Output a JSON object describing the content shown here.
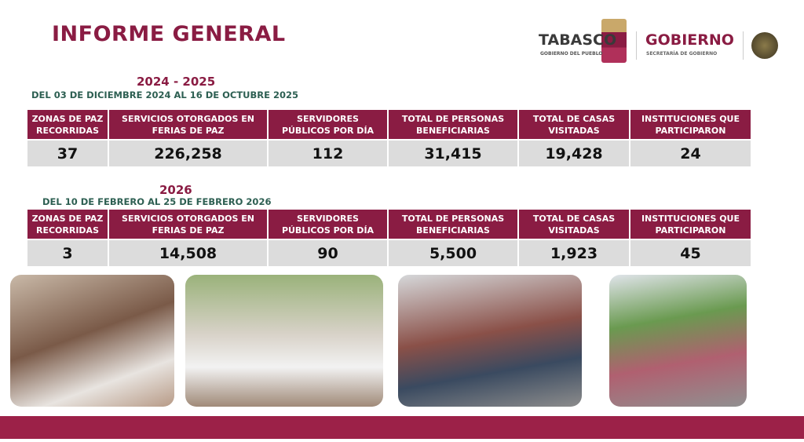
{
  "title": "INFORME GENERAL",
  "logos": {
    "tabasco": "TABASCO",
    "tabasco_sub": "GOBIERNO DEL PUEBLO",
    "gobierno": "GOBIERNO",
    "gobierno_sub": "SECRETARÍA DE GOBIERNO",
    "seal": "OLMECA"
  },
  "colors": {
    "accent": "#8a1c43",
    "green": "#2d5f52",
    "cell": "#dcdcdc",
    "bar": "#9c2148"
  },
  "headers": [
    "ZONAS DE PAZ RECORRIDAS",
    "SERVICIOS OTORGADOS EN FERIAS DE PAZ",
    "SERVIDORES PÚBLICOS  POR DÍA",
    "TOTAL DE PERSONAS BENEFICIARIAS",
    "TOTAL DE CASAS VISITADAS",
    "INSTITUCIONES QUE PARTICIPARON"
  ],
  "periods": [
    {
      "year": "2024 - 2025",
      "range": "DEL 03 DE DICIEMBRE 2024 AL 16 DE OCTUBRE 2025",
      "values": [
        "37",
        "226,258",
        "112",
        "31,415",
        "19,428",
        "24"
      ]
    },
    {
      "year": "2026",
      "range": "DEL 10  DE  FEBRERO  AL 25 DE FEBRERO 2026",
      "values": [
        "3",
        "14,508",
        "90",
        "5,500",
        "1,923",
        "45"
      ]
    }
  ]
}
